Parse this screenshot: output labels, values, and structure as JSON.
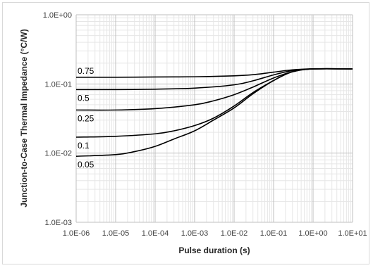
{
  "chart_data": {
    "type": "line",
    "title": "",
    "xlabel": "Pulse duration (s)",
    "ylabel": "Junction-to-Case Thermal Impedance (°C/W)",
    "xscale": "log",
    "yscale": "log",
    "xlim": [
      1e-06,
      10
    ],
    "ylim": [
      0.001,
      1
    ],
    "x_tick_labels": [
      "1.0E-06",
      "1.0E-05",
      "1.0E-04",
      "1.0E-03",
      "1.0E-02",
      "1.0E-01",
      "1.0E+00",
      "1.0E+01"
    ],
    "y_tick_labels": [
      "1.0E-03",
      "1.0E-02",
      "1.0E-01",
      "1.0E+00"
    ],
    "grid": true,
    "line_color": "#000000",
    "series": [
      {
        "name": "0.75",
        "x": [
          1e-06,
          1e-05,
          0.0001,
          0.001,
          0.01,
          0.03,
          0.1,
          0.3,
          1,
          10
        ],
        "y": [
          0.125,
          0.125,
          0.126,
          0.127,
          0.131,
          0.136,
          0.148,
          0.16,
          0.165,
          0.165
        ]
      },
      {
        "name": "0.5",
        "x": [
          1e-06,
          1e-05,
          0.0001,
          0.001,
          0.01,
          0.03,
          0.1,
          0.3,
          1,
          10
        ],
        "y": [
          0.083,
          0.083,
          0.084,
          0.087,
          0.097,
          0.111,
          0.135,
          0.156,
          0.165,
          0.165
        ]
      },
      {
        "name": "0.25",
        "x": [
          1e-06,
          1e-05,
          0.0001,
          0.001,
          0.003,
          0.01,
          0.03,
          0.1,
          0.3,
          1,
          10
        ],
        "y": [
          0.042,
          0.042,
          0.044,
          0.05,
          0.057,
          0.07,
          0.09,
          0.122,
          0.15,
          0.165,
          0.165
        ]
      },
      {
        "name": "0.1",
        "x": [
          1e-06,
          1e-05,
          0.0001,
          0.0003,
          0.001,
          0.003,
          0.01,
          0.03,
          0.1,
          0.3,
          1,
          10
        ],
        "y": [
          0.017,
          0.0175,
          0.019,
          0.021,
          0.025,
          0.032,
          0.048,
          0.075,
          0.112,
          0.15,
          0.165,
          0.165
        ]
      },
      {
        "name": "0.05",
        "x": [
          1e-06,
          1e-05,
          3e-05,
          0.0001,
          0.0003,
          0.001,
          0.003,
          0.01,
          0.03,
          0.1,
          0.3,
          1,
          10
        ],
        "y": [
          0.009,
          0.0095,
          0.0105,
          0.0125,
          0.016,
          0.021,
          0.03,
          0.045,
          0.072,
          0.112,
          0.15,
          0.165,
          0.165
        ]
      }
    ]
  }
}
